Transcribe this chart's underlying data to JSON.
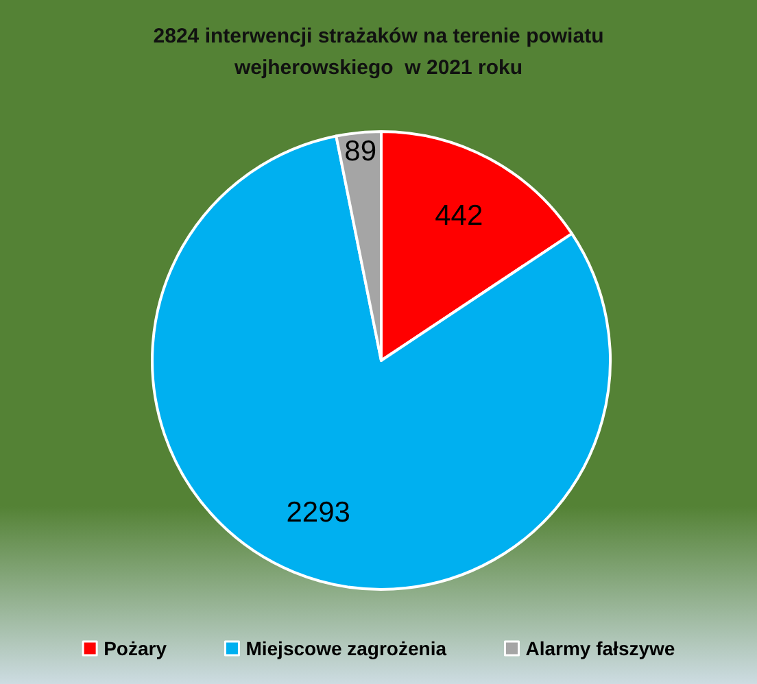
{
  "chart_data": {
    "type": "pie",
    "title": "2824 interwencji strażaków na terenie powiatu\nwejherowskiego  w 2021 roku",
    "categories": [
      "Pożary",
      "Miejscowe zagrożenia",
      "Alarmy fałszywe"
    ],
    "values": [
      442,
      2293,
      89
    ],
    "colors": [
      "#ff0000",
      "#00b0f0",
      "#a5a5a5"
    ],
    "data_labels": true,
    "legend": "bottom"
  }
}
